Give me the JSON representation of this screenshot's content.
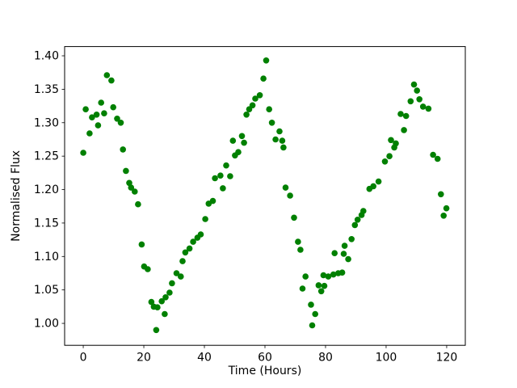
{
  "figure": {
    "background": "#ffffff"
  },
  "chart_data": {
    "type": "scatter",
    "title": "",
    "xlabel": "Time (Hours)",
    "ylabel": "Normalised Flux",
    "grid": false,
    "legend_position": "none",
    "marker_color": "#008000",
    "marker_radius_px": 3.8,
    "xlim": [
      -6.15,
      126.15
    ],
    "ylim": [
      0.9672,
      1.4138
    ],
    "xticks": [
      0,
      20,
      40,
      60,
      80,
      100,
      120
    ],
    "xtick_labels": [
      "0",
      "20",
      "40",
      "60",
      "80",
      "100",
      "120"
    ],
    "yticks": [
      1.0,
      1.05,
      1.1,
      1.15,
      1.2,
      1.25,
      1.3,
      1.35,
      1.4
    ],
    "ytick_labels": [
      "1.00",
      "1.05",
      "1.10",
      "1.15",
      "1.20",
      "1.25",
      "1.30",
      "1.35",
      "1.40"
    ],
    "points": [
      [
        0.0,
        1.255
      ],
      [
        0.8,
        1.32
      ],
      [
        2.1,
        1.284
      ],
      [
        2.9,
        1.308
      ],
      [
        4.4,
        1.312
      ],
      [
        4.9,
        1.296
      ],
      [
        5.9,
        1.33
      ],
      [
        6.9,
        1.314
      ],
      [
        7.8,
        1.371
      ],
      [
        9.3,
        1.363
      ],
      [
        9.9,
        1.323
      ],
      [
        11.2,
        1.306
      ],
      [
        12.4,
        1.3
      ],
      [
        13.1,
        1.26
      ],
      [
        14.1,
        1.228
      ],
      [
        15.2,
        1.21
      ],
      [
        15.8,
        1.203
      ],
      [
        17.0,
        1.197
      ],
      [
        18.1,
        1.178
      ],
      [
        19.3,
        1.118
      ],
      [
        20.1,
        1.085
      ],
      [
        21.3,
        1.081
      ],
      [
        22.5,
        1.032
      ],
      [
        23.3,
        1.025
      ],
      [
        24.1,
        0.99
      ],
      [
        24.5,
        1.024
      ],
      [
        25.9,
        1.033
      ],
      [
        26.9,
        1.014
      ],
      [
        27.2,
        1.039
      ],
      [
        28.5,
        1.046
      ],
      [
        29.3,
        1.06
      ],
      [
        30.8,
        1.075
      ],
      [
        32.2,
        1.07
      ],
      [
        32.8,
        1.093
      ],
      [
        33.7,
        1.106
      ],
      [
        35.1,
        1.112
      ],
      [
        36.3,
        1.122
      ],
      [
        37.7,
        1.128
      ],
      [
        38.8,
        1.133
      ],
      [
        40.3,
        1.156
      ],
      [
        41.4,
        1.179
      ],
      [
        42.8,
        1.183
      ],
      [
        43.5,
        1.217
      ],
      [
        45.3,
        1.221
      ],
      [
        46.1,
        1.202
      ],
      [
        47.2,
        1.236
      ],
      [
        48.5,
        1.22
      ],
      [
        49.4,
        1.273
      ],
      [
        50.1,
        1.251
      ],
      [
        51.2,
        1.256
      ],
      [
        52.4,
        1.28
      ],
      [
        53.1,
        1.27
      ],
      [
        53.9,
        1.312
      ],
      [
        54.8,
        1.32
      ],
      [
        55.9,
        1.326
      ],
      [
        56.8,
        1.336
      ],
      [
        58.3,
        1.341
      ],
      [
        59.5,
        1.366
      ],
      [
        60.4,
        1.393
      ],
      [
        61.4,
        1.32
      ],
      [
        62.3,
        1.3
      ],
      [
        63.5,
        1.275
      ],
      [
        64.8,
        1.287
      ],
      [
        65.7,
        1.273
      ],
      [
        66.1,
        1.263
      ],
      [
        66.8,
        1.203
      ],
      [
        68.3,
        1.191
      ],
      [
        69.6,
        1.158
      ],
      [
        70.9,
        1.122
      ],
      [
        71.7,
        1.11
      ],
      [
        72.4,
        1.052
      ],
      [
        73.4,
        1.07
      ],
      [
        75.2,
        1.028
      ],
      [
        75.6,
        0.997
      ],
      [
        76.6,
        1.014
      ],
      [
        77.7,
        1.057
      ],
      [
        78.6,
        1.048
      ],
      [
        79.6,
        1.056
      ],
      [
        79.3,
        1.072
      ],
      [
        80.9,
        1.07
      ],
      [
        82.6,
        1.073
      ],
      [
        84.2,
        1.075
      ],
      [
        85.5,
        1.076
      ],
      [
        83.0,
        1.105
      ],
      [
        86.0,
        1.104
      ],
      [
        86.3,
        1.116
      ],
      [
        87.5,
        1.096
      ],
      [
        88.6,
        1.126
      ],
      [
        89.7,
        1.147
      ],
      [
        90.6,
        1.155
      ],
      [
        91.9,
        1.162
      ],
      [
        92.5,
        1.168
      ],
      [
        94.5,
        1.201
      ],
      [
        95.8,
        1.205
      ],
      [
        97.5,
        1.212
      ],
      [
        99.6,
        1.242
      ],
      [
        101.1,
        1.25
      ],
      [
        101.6,
        1.274
      ],
      [
        102.7,
        1.263
      ],
      [
        103.2,
        1.269
      ],
      [
        104.8,
        1.313
      ],
      [
        105.9,
        1.289
      ],
      [
        106.6,
        1.31
      ],
      [
        108.1,
        1.332
      ],
      [
        109.2,
        1.357
      ],
      [
        110.2,
        1.348
      ],
      [
        111.0,
        1.335
      ],
      [
        112.2,
        1.324
      ],
      [
        114.0,
        1.321
      ],
      [
        115.5,
        1.252
      ],
      [
        117.0,
        1.246
      ],
      [
        118.1,
        1.193
      ],
      [
        119.0,
        1.161
      ],
      [
        119.9,
        1.172
      ]
    ]
  }
}
